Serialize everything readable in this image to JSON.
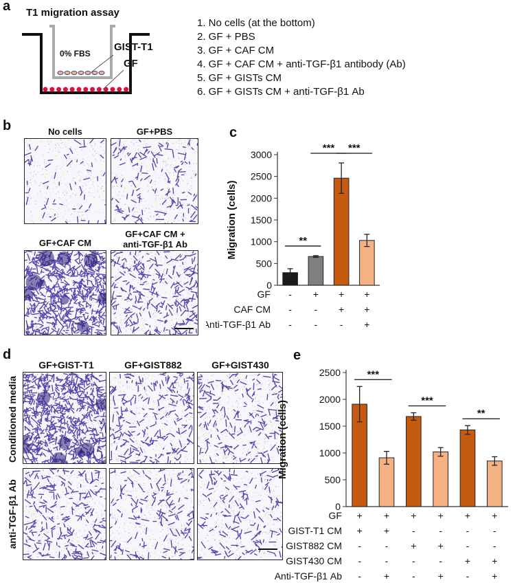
{
  "panel_a": {
    "letter": "a",
    "title": "T1 migration assay",
    "labels": {
      "fbs": "0% FBS",
      "gist": "GIST-T1",
      "gf": "GF"
    },
    "conditions": [
      "1. No cells (at the bottom)",
      "2. GF + PBS",
      "3. GF + CAF CM",
      "4. GF + CAF CM + anti-TGF-β1 antibody (Ab)",
      "5. GF + GISTs CM",
      "6. GF + GISTs CM + anti-TGF-β1 Ab"
    ]
  },
  "panel_b": {
    "letter": "b",
    "images": [
      {
        "title": "No cells",
        "density": 0.05
      },
      {
        "title": "GF+PBS",
        "density": 0.12
      },
      {
        "title": "GF+CAF CM",
        "density": 0.55
      },
      {
        "title_line1": "GF+CAF CM +",
        "title_line2": "anti-TGF-β1 Ab",
        "density": 0.22
      }
    ]
  },
  "panel_d": {
    "letter": "d",
    "columns": [
      "GF+GIST-T1",
      "GF+GIST882",
      "GF+GIST430"
    ],
    "rows": [
      "Conditioned media",
      "anti-TGF-β1 Ab"
    ],
    "density": [
      [
        0.55,
        0.18,
        0.15
      ],
      [
        0.18,
        0.12,
        0.12
      ]
    ]
  },
  "panel_c": {
    "letter": "c",
    "chart_data": {
      "type": "bar",
      "ylabel": "Migration (cells)",
      "ylim": [
        0,
        3000
      ],
      "yticks": [
        0,
        500,
        1000,
        1500,
        2000,
        2500,
        3000
      ],
      "values": [
        290,
        660,
        2460,
        1030
      ],
      "errors": [
        90,
        20,
        350,
        140
      ],
      "colors": [
        "#1a1a1a",
        "#7f7f7f",
        "#c55a11",
        "#f4b183"
      ],
      "row_labels": [
        "GF",
        "CAF CM",
        "Anti-TGF-β1 Ab"
      ],
      "rows": [
        [
          "-",
          "+",
          "+",
          "+"
        ],
        [
          "-",
          "-",
          "+",
          "+"
        ],
        [
          "-",
          "-",
          "-",
          "+"
        ]
      ],
      "significance": [
        {
          "from": 0,
          "to": 1,
          "label": "**"
        },
        {
          "from": 1,
          "to": 2,
          "label": "***"
        },
        {
          "from": 2,
          "to": 3,
          "label": "***"
        }
      ]
    }
  },
  "panel_e": {
    "letter": "e",
    "chart_data": {
      "type": "bar",
      "ylabel": "Migration (cells)",
      "ylim": [
        0,
        2500
      ],
      "yticks": [
        0,
        500,
        1000,
        1500,
        2000,
        2500
      ],
      "values": [
        1910,
        910,
        1680,
        1020,
        1430,
        850
      ],
      "errors": [
        330,
        120,
        70,
        80,
        80,
        80
      ],
      "colors": [
        "#c55a11",
        "#f4b183",
        "#c55a11",
        "#f4b183",
        "#c55a11",
        "#f4b183"
      ],
      "row_labels": [
        "GF",
        "GIST-T1 CM",
        "GIST882 CM",
        "GIST430 CM",
        "Anti-TGF-β1 Ab"
      ],
      "rows": [
        [
          "+",
          "+",
          "+",
          "+",
          "+",
          "+"
        ],
        [
          "+",
          "+",
          "-",
          "-",
          "-",
          "-"
        ],
        [
          "-",
          "-",
          "+",
          "+",
          "-",
          "-"
        ],
        [
          "-",
          "-",
          "-",
          "-",
          "+",
          "+"
        ],
        [
          "-",
          "+",
          "-",
          "+",
          "-",
          "+"
        ]
      ],
      "significance": [
        {
          "from": 0,
          "to": 1,
          "label": "***"
        },
        {
          "from": 2,
          "to": 3,
          "label": "***"
        },
        {
          "from": 4,
          "to": 5,
          "label": "**"
        }
      ]
    }
  }
}
